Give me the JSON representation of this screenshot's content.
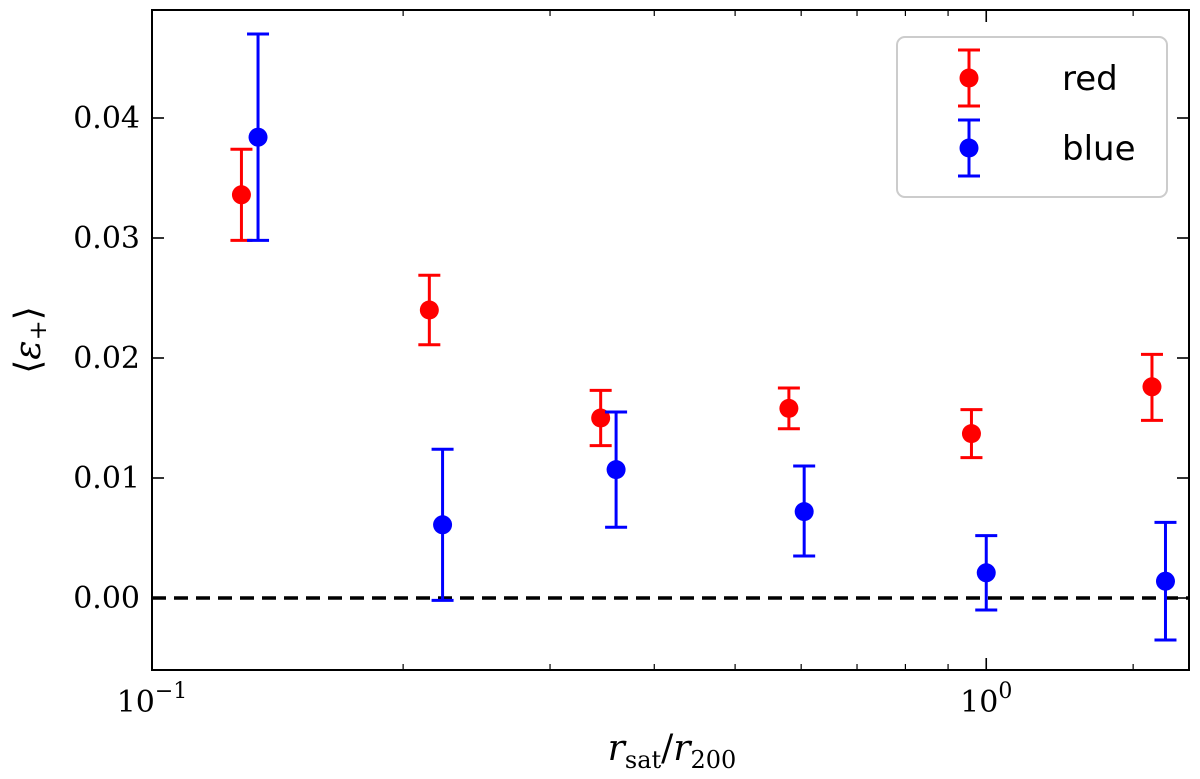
{
  "chart_data": {
    "type": "scatter",
    "title": "",
    "xlabel": "r_sat / r_200",
    "ylabel": "⟨ε+⟩",
    "xscale": "log",
    "xlim": [
      0.1,
      1.75
    ],
    "ylim": [
      -0.006,
      0.049
    ],
    "x_ticks": [
      {
        "value": 0.1,
        "base": "10",
        "exp": "−1"
      },
      {
        "value": 1.0,
        "base": "10",
        "exp": "0"
      }
    ],
    "y_ticks": [
      {
        "value": 0.0,
        "label": "0.00"
      },
      {
        "value": 0.01,
        "label": "0.01"
      },
      {
        "value": 0.02,
        "label": "0.02"
      },
      {
        "value": 0.03,
        "label": "0.03"
      },
      {
        "value": 0.04,
        "label": "0.04"
      }
    ],
    "reference_line": {
      "y": 0.0,
      "style": "dashed",
      "color": "#000000"
    },
    "legend_position": "top-right",
    "series": [
      {
        "name": "red",
        "color": "#ff0000",
        "points": [
          {
            "x": 0.128,
            "y": 0.0336,
            "lo": 0.0298,
            "hi": 0.0374
          },
          {
            "x": 0.215,
            "y": 0.024,
            "lo": 0.0211,
            "hi": 0.0269
          },
          {
            "x": 0.345,
            "y": 0.015,
            "lo": 0.0127,
            "hi": 0.0173
          },
          {
            "x": 0.58,
            "y": 0.0158,
            "lo": 0.0141,
            "hi": 0.0175
          },
          {
            "x": 0.96,
            "y": 0.0137,
            "lo": 0.0117,
            "hi": 0.0157
          },
          {
            "x": 1.58,
            "y": 0.0176,
            "lo": 0.0148,
            "hi": 0.0203
          }
        ]
      },
      {
        "name": "blue",
        "color": "#0000ff",
        "points": [
          {
            "x": 0.134,
            "y": 0.0384,
            "lo": 0.0298,
            "hi": 0.047
          },
          {
            "x": 0.223,
            "y": 0.0061,
            "lo": -0.0002,
            "hi": 0.0124
          },
          {
            "x": 0.36,
            "y": 0.0107,
            "lo": 0.0059,
            "hi": 0.0155
          },
          {
            "x": 0.605,
            "y": 0.0072,
            "lo": 0.0035,
            "hi": 0.011
          },
          {
            "x": 1.0,
            "y": 0.0021,
            "lo": -0.001,
            "hi": 0.0052
          },
          {
            "x": 1.64,
            "y": 0.0014,
            "lo": -0.0035,
            "hi": 0.0063
          }
        ]
      }
    ]
  }
}
